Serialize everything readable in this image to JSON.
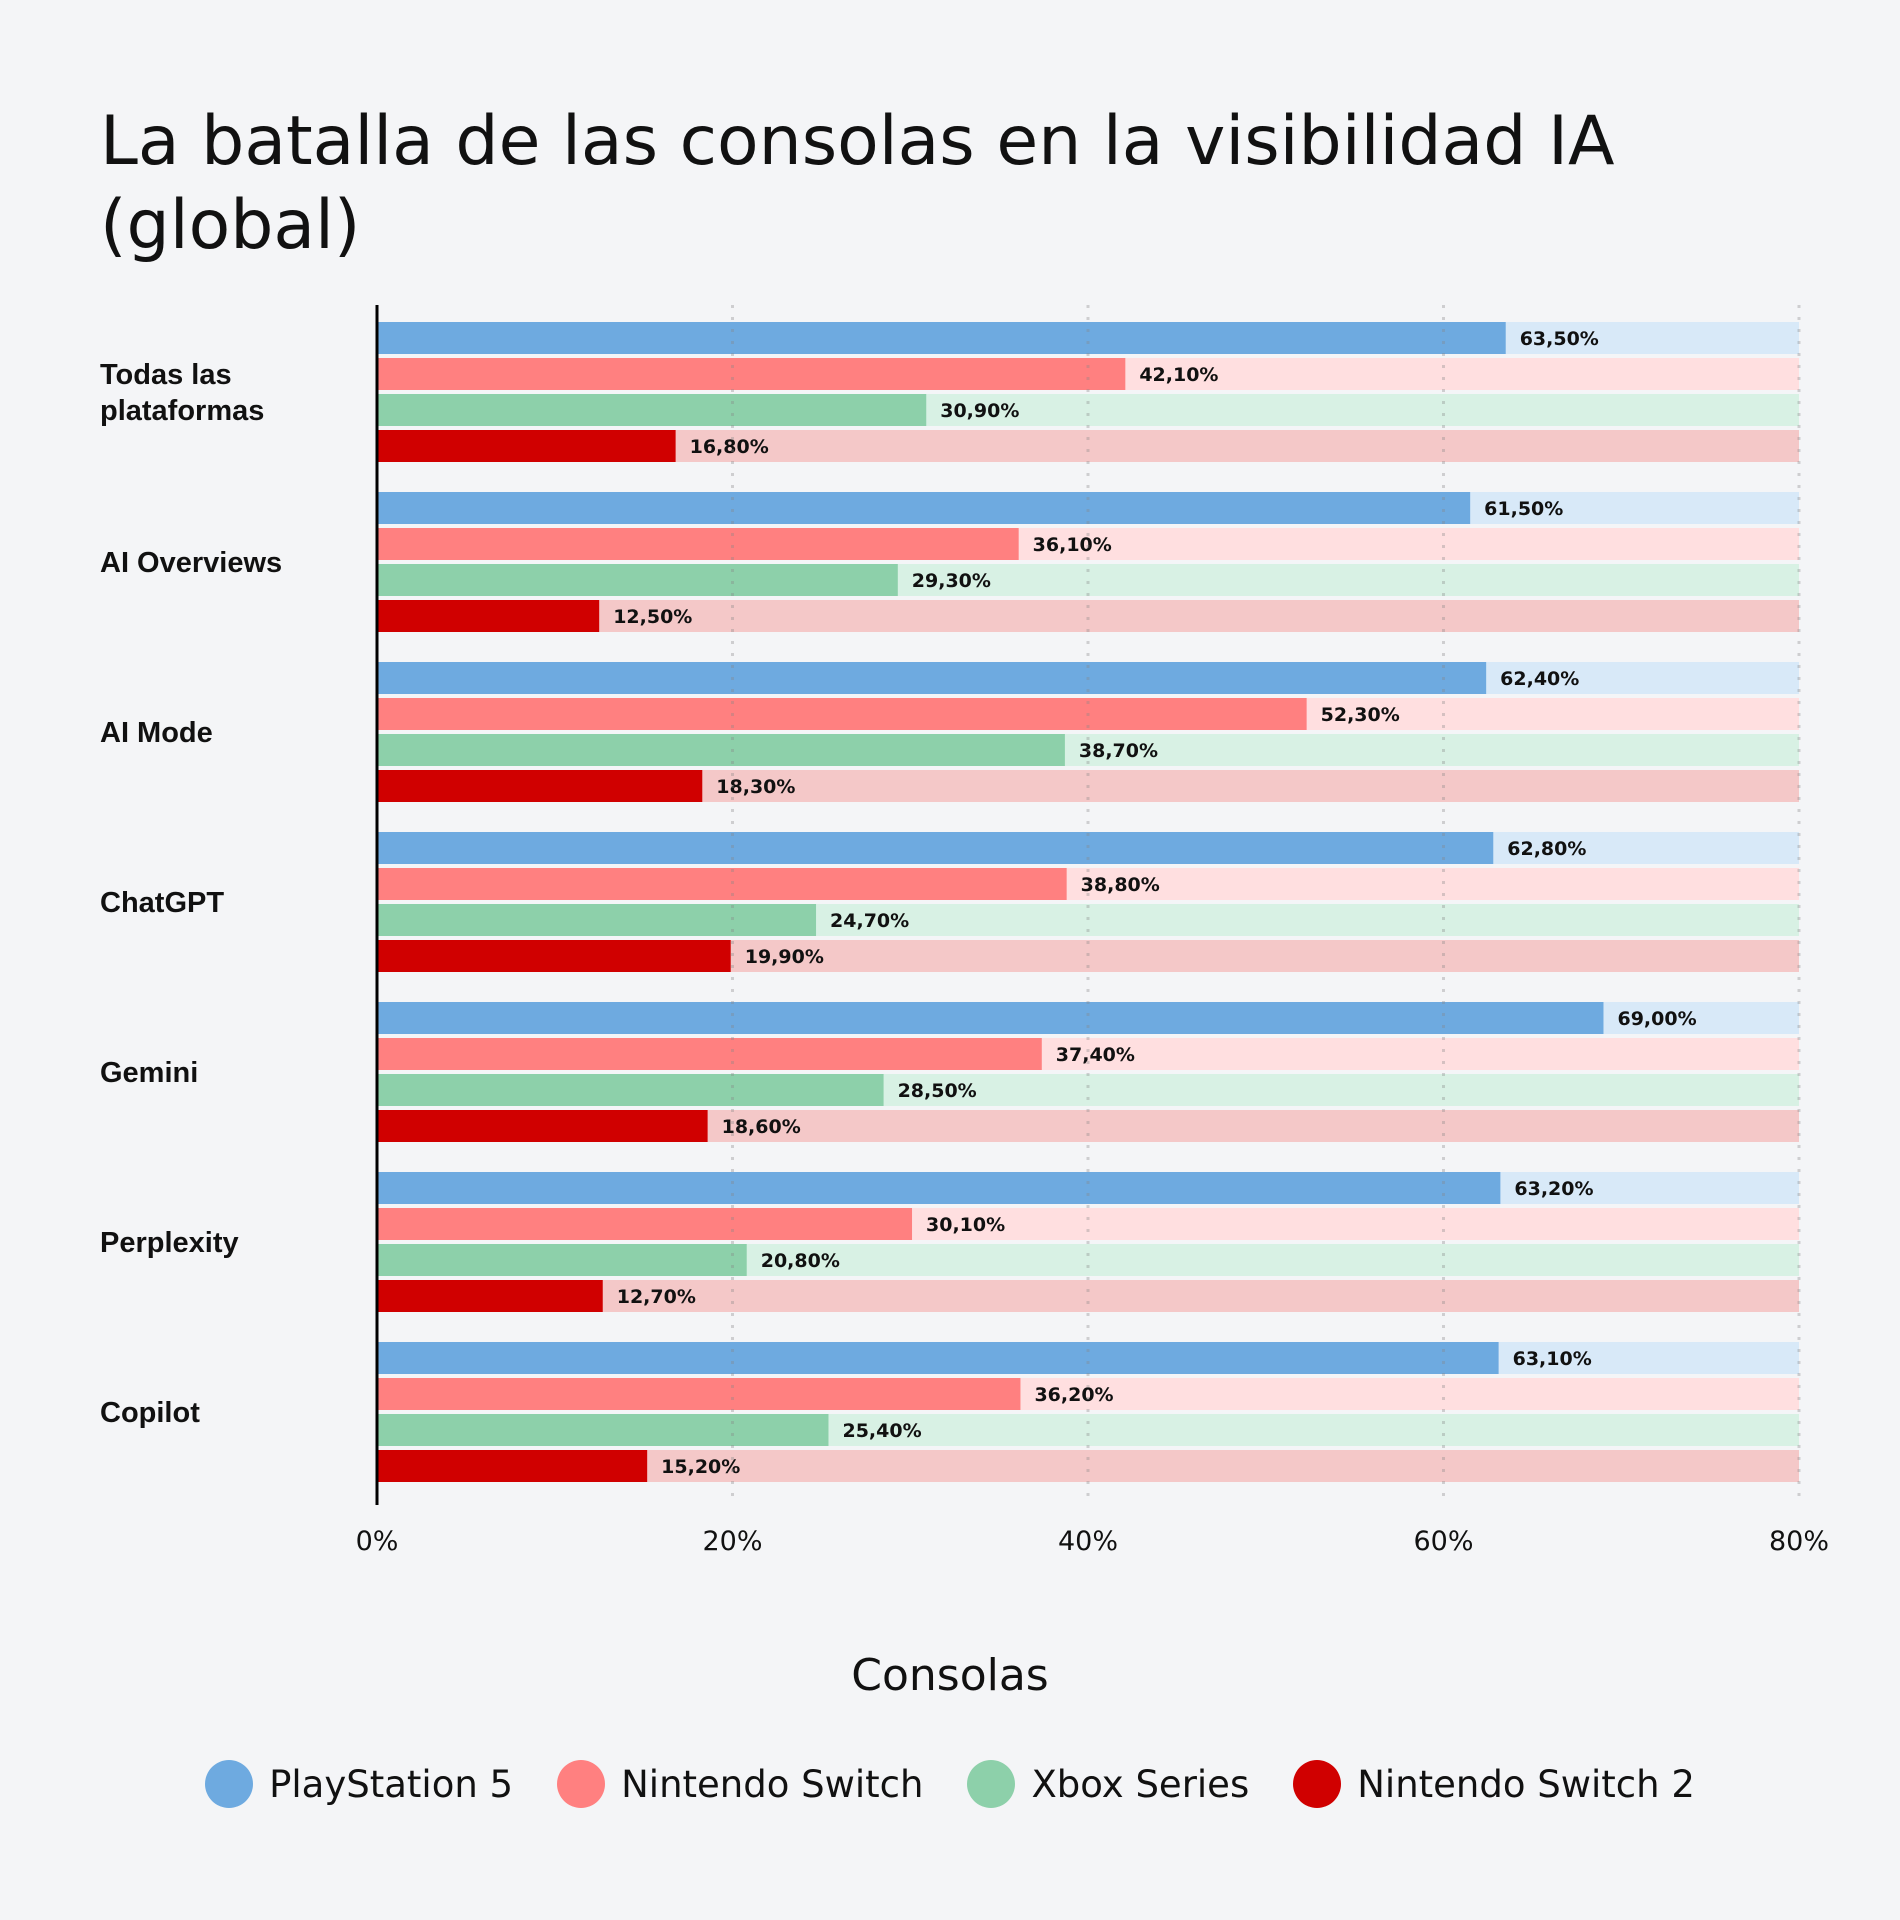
{
  "chart_data": {
    "type": "bar",
    "orientation": "horizontal",
    "title": "La batalla de las consolas en la visibilidad IA (global)",
    "categories": [
      "Todas las plataformas",
      "AI Overviews",
      "AI Mode",
      "ChatGPT",
      "Gemini",
      "Perplexity",
      "Copilot"
    ],
    "series": [
      {
        "name": "PlayStation 5",
        "color": "#6eaae0",
        "track_color": "#d8e9f8",
        "values": [
          63.5,
          61.5,
          62.4,
          62.8,
          69.0,
          63.2,
          63.1
        ],
        "labels": [
          "63,50%",
          "61,50%",
          "62,40%",
          "62,80%",
          "69,00%",
          "63,20%",
          "63,10%"
        ]
      },
      {
        "name": "Nintendo Switch",
        "color": "#ff8080",
        "track_color": "#ffdfe0",
        "values": [
          42.1,
          36.1,
          52.3,
          38.8,
          37.4,
          30.1,
          36.2
        ],
        "labels": [
          "42,10%",
          "36,10%",
          "52,30%",
          "38,80%",
          "37,40%",
          "30,10%",
          "36,20%"
        ]
      },
      {
        "name": "Xbox Series",
        "color": "#8dd0aa",
        "track_color": "#d8f1e4",
        "values": [
          30.9,
          29.3,
          38.7,
          24.7,
          28.5,
          20.8,
          25.4
        ],
        "labels": [
          "30,90%",
          "29,30%",
          "38,70%",
          "24,70%",
          "28,50%",
          "20,80%",
          "25,40%"
        ]
      },
      {
        "name": "Nintendo Switch 2",
        "color": "#d00000",
        "track_color": "#f4c8c8",
        "values": [
          16.8,
          12.5,
          18.3,
          19.9,
          18.6,
          12.7,
          15.2
        ],
        "labels": [
          "16,80%",
          "12,50%",
          "18,30%",
          "19,90%",
          "18,60%",
          "12,70%",
          "15,20%"
        ]
      }
    ],
    "xlim": [
      0,
      80
    ],
    "xticks": [
      "0%",
      "20%",
      "40%",
      "60%",
      "80%"
    ],
    "xtick_values": [
      0,
      20,
      40,
      60,
      80
    ],
    "grid": "vertical dotted",
    "legend_title": "Consolas",
    "legend_placement": "bottom"
  }
}
